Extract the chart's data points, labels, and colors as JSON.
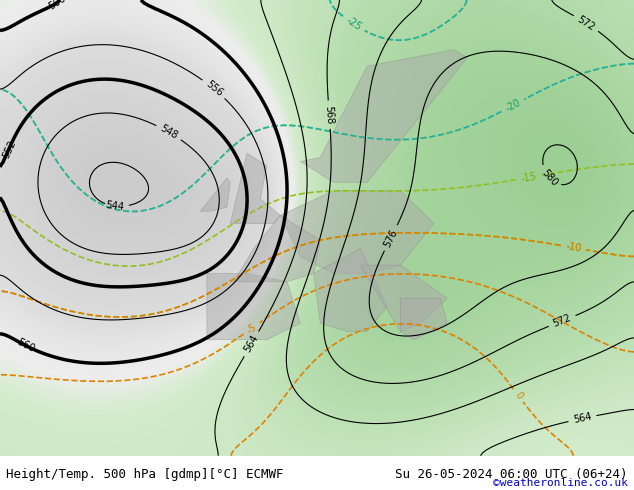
{
  "title_left": "Height/Temp. 500 hPa [gdmp][°C] ECMWF",
  "title_right": "Su 26-05-2024 06:00 UTC (06+24)",
  "copyright": "©weatheronline.co.uk",
  "bg_color_light": "#c8e6c0",
  "bg_color_dark": "#e8e8e8",
  "figsize": [
    6.34,
    4.9
  ],
  "dpi": 100
}
